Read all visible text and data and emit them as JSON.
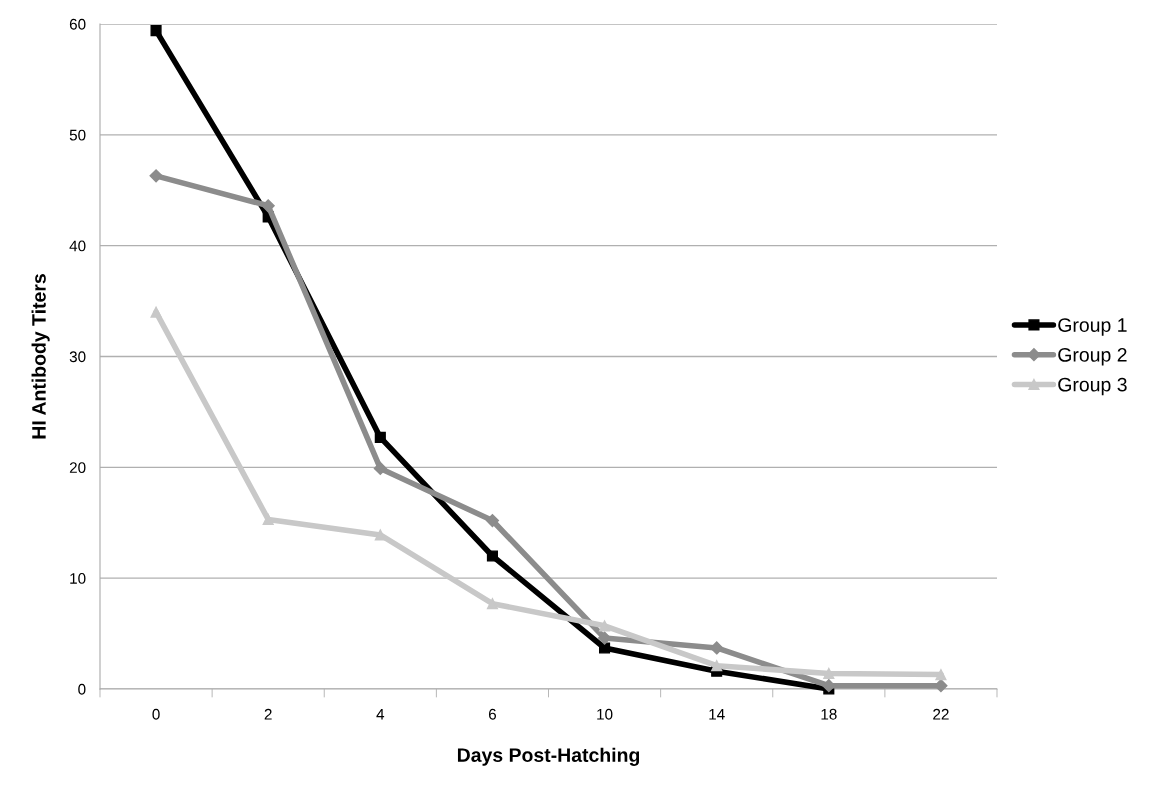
{
  "chart_data": {
    "type": "line",
    "xlabel": "Days Post-Hatching",
    "ylabel": "HI Antibody Titers",
    "categories": [
      "0",
      "2",
      "4",
      "6",
      "10",
      "14",
      "18",
      "22"
    ],
    "series": [
      {
        "name": "Group 1",
        "color": "#000000",
        "marker": "square",
        "values": [
          59.4,
          42.6,
          22.7,
          12.0,
          3.7,
          1.6,
          0,
          null
        ]
      },
      {
        "name": "Group 2",
        "color": "#8c8c8c",
        "marker": "diamond",
        "values": [
          46.3,
          43.6,
          19.9,
          15.2,
          4.6,
          3.7,
          0.3,
          0.3
        ]
      },
      {
        "name": "Group 3",
        "color": "#c8c8c8",
        "marker": "triangle",
        "values": [
          34.0,
          15.3,
          13.9,
          7.7,
          5.7,
          2.1,
          1.4,
          1.3
        ]
      }
    ],
    "ylim": [
      0,
      60
    ],
    "yticks": [
      0,
      10,
      20,
      30,
      40,
      50,
      60
    ],
    "grid": "y",
    "legend": "right"
  }
}
